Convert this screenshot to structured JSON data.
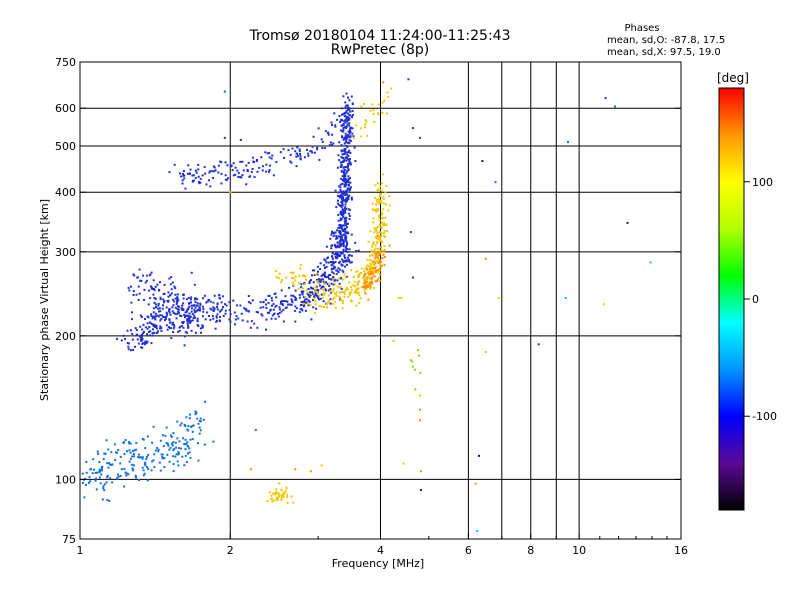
{
  "chart_data": {
    "type": "scatter",
    "title": "Tromsø 20180104 11:24:00-11:25:43",
    "subtitle": "RwPretec (8p)",
    "xlabel": "Frequency [MHz]",
    "ylabel": "Stationary phase Virtual Height [km]",
    "x_scale": "log",
    "y_scale": "log",
    "xlim": [
      1,
      16
    ],
    "ylim": [
      75,
      750
    ],
    "x_ticks": [
      1,
      2,
      4,
      6,
      8,
      10,
      16
    ],
    "x_grid": [
      2,
      4,
      6,
      7,
      8,
      9,
      10
    ],
    "y_ticks": [
      75,
      100,
      200,
      300,
      400,
      500,
      600,
      750
    ],
    "y_grid": [
      100,
      200,
      300,
      400,
      500,
      600
    ],
    "grid": true,
    "stats": {
      "heading": "Phases",
      "line_o": "mean, sd,O: -87.8, 17.5",
      "line_x": "mean, sd,X:  97.5, 19.0"
    },
    "colorbar": {
      "label": "[deg]",
      "range": [
        -180,
        180
      ],
      "ticks": [
        100,
        0,
        -100
      ],
      "colors": [
        "#000000",
        "#5a0a96",
        "#0000ff",
        "#0096ff",
        "#00ffff",
        "#00ff00",
        "#b4ff00",
        "#ffff00",
        "#ff9600",
        "#ff0000"
      ]
    },
    "series": [
      {
        "phase": -95,
        "color": "#2030d0",
        "segments": [
          {
            "f": [
              1.28,
              1.34,
              1.45,
              1.55,
              1.65,
              1.8,
              2.0,
              2.3,
              2.6,
              2.9,
              3.1,
              3.3,
              3.4
            ],
            "h": [
              190,
              205,
              215,
              220,
              223,
              225,
              226,
              228,
              232,
              240,
              255,
              280,
              310
            ],
            "n": 520,
            "sf": 0.035,
            "sh": 0.04
          },
          {
            "f": [
              1.3,
              1.45,
              1.6,
              1.75
            ],
            "h": [
              250,
              240,
              230,
              222
            ],
            "n": 160,
            "sf": 0.04,
            "sh": 0.06
          },
          {
            "f": [
              1.55,
              1.7,
              1.9,
              2.1,
              2.4,
              2.7,
              2.95,
              3.15,
              3.3
            ],
            "h": [
              430,
              435,
              440,
              445,
              460,
              475,
              490,
              520,
              570
            ],
            "n": 170,
            "sf": 0.025,
            "sh": 0.03
          },
          {
            "f": [
              3.35,
              3.37,
              3.4,
              3.42,
              3.44
            ],
            "h": [
              300,
              360,
              420,
              500,
              620
            ],
            "n": 420,
            "sf": 0.015,
            "sh": 0.05
          }
        ]
      },
      {
        "phase": -110,
        "color": "#1a28c8",
        "segments": [
          {
            "f": [
              2.8,
              3.0,
              3.15,
              3.25,
              3.32
            ],
            "h": [
              240,
              255,
              275,
              300,
              340
            ],
            "n": 90,
            "sf": 0.02,
            "sh": 0.03
          }
        ]
      },
      {
        "phase": -78,
        "color": "#1070e0",
        "segments": [
          {
            "f": [
              1.0,
              1.1,
              1.2,
              1.35,
              1.5,
              1.65
            ],
            "h": [
              100,
              104,
              108,
              112,
              116,
              120
            ],
            "n": 230,
            "sf": 0.05,
            "sh": 0.06
          },
          {
            "f": [
              1.6,
              1.7,
              1.75
            ],
            "h": [
              130,
              133,
              135
            ],
            "n": 25,
            "sf": 0.02,
            "sh": 0.03
          }
        ]
      },
      {
        "phase": 110,
        "color": "#f0c800",
        "segments": [
          {
            "f": [
              2.9,
              3.2,
              3.5,
              3.7,
              3.85,
              3.95,
              4.0,
              4.02
            ],
            "h": [
              245,
              248,
              252,
              260,
              275,
              300,
              350,
              420
            ],
            "n": 320,
            "sf": 0.02,
            "sh": 0.04
          },
          {
            "f": [
              2.45,
              2.5,
              2.55
            ],
            "h": [
              92,
              93,
              94
            ],
            "n": 45,
            "sf": 0.03,
            "sh": 0.02
          },
          {
            "f": [
              2.5,
              2.65,
              2.8
            ],
            "h": [
              270,
              265,
              258
            ],
            "n": 30,
            "sf": 0.03,
            "sh": 0.03
          },
          {
            "f": [
              3.6,
              3.75,
              3.9,
              4.05
            ],
            "h": [
              540,
              570,
              600,
              640
            ],
            "n": 25,
            "sf": 0.02,
            "sh": 0.03
          }
        ]
      },
      {
        "phase": 135,
        "color": "#ff8c00",
        "segments": [
          {
            "f": [
              3.7,
              3.85,
              3.95,
              4.05
            ],
            "h": [
              255,
              265,
              285,
              320
            ],
            "n": 70,
            "sf": 0.015,
            "sh": 0.03
          }
        ]
      },
      {
        "phase": 50,
        "color": "#80e000",
        "segments": [
          {
            "f": [
              4.6,
              4.75,
              4.85
            ],
            "h": [
              190,
              175,
              165
            ],
            "n": 8,
            "sf": 0.02,
            "sh": 0.05
          }
        ]
      }
    ],
    "scatter_points": [
      {
        "f": 1.95,
        "h": 650,
        "c": "#1060e0"
      },
      {
        "f": 1.95,
        "h": 520,
        "c": "#2030d0"
      },
      {
        "f": 2.1,
        "h": 515,
        "c": "#1a28c8"
      },
      {
        "f": 4.05,
        "h": 680,
        "c": "#ff8c00"
      },
      {
        "f": 4.2,
        "h": 660,
        "c": "#f0c800"
      },
      {
        "f": 4.55,
        "h": 690,
        "c": "#2030d0"
      },
      {
        "f": 4.65,
        "h": 545,
        "c": "#1a28c8"
      },
      {
        "f": 4.8,
        "h": 520,
        "c": "#2030d0"
      },
      {
        "f": 4.6,
        "h": 330,
        "c": "#2030d0"
      },
      {
        "f": 4.65,
        "h": 265,
        "c": "#2030d0"
      },
      {
        "f": 4.35,
        "h": 240,
        "c": "#f0c800"
      },
      {
        "f": 4.8,
        "h": 150,
        "c": "#f0c800"
      },
      {
        "f": 4.8,
        "h": 140,
        "c": "#ff8c00"
      },
      {
        "f": 4.8,
        "h": 133,
        "c": "#ff8c00"
      },
      {
        "f": 4.82,
        "h": 104,
        "c": "#ff8c00"
      },
      {
        "f": 4.82,
        "h": 95,
        "c": "#1a1a60"
      },
      {
        "f": 4.45,
        "h": 108,
        "c": "#f0c800"
      },
      {
        "f": 6.4,
        "h": 465,
        "c": "#1a1a60"
      },
      {
        "f": 6.5,
        "h": 290,
        "c": "#ff8c00"
      },
      {
        "f": 6.5,
        "h": 185,
        "c": "#f0c800"
      },
      {
        "f": 6.3,
        "h": 112,
        "c": "#1a1a60"
      },
      {
        "f": 6.2,
        "h": 98,
        "c": "#ff8c00"
      },
      {
        "f": 6.25,
        "h": 78,
        "c": "#00c8c8"
      },
      {
        "f": 6.8,
        "h": 420,
        "c": "#1070e0"
      },
      {
        "f": 6.9,
        "h": 240,
        "c": "#f0c800"
      },
      {
        "f": 8.3,
        "h": 192,
        "c": "#2030d0"
      },
      {
        "f": 9.5,
        "h": 510,
        "c": "#1070e0"
      },
      {
        "f": 9.4,
        "h": 240,
        "c": "#00c8c8"
      },
      {
        "f": 11.2,
        "h": 233,
        "c": "#f0c800"
      },
      {
        "f": 11.3,
        "h": 630,
        "c": "#2030d0"
      },
      {
        "f": 11.8,
        "h": 605,
        "c": "#1070e0"
      },
      {
        "f": 12.5,
        "h": 345,
        "c": "#1a1a60"
      },
      {
        "f": 13.9,
        "h": 285,
        "c": "#00c8c8"
      },
      {
        "f": 2.0,
        "h": 400,
        "c": "#f0c800"
      },
      {
        "f": 2.2,
        "h": 105,
        "c": "#ff8c00"
      },
      {
        "f": 2.7,
        "h": 105,
        "c": "#ff8c00"
      },
      {
        "f": 2.9,
        "h": 104,
        "c": "#ff8c00"
      },
      {
        "f": 3.05,
        "h": 107,
        "c": "#f0c800"
      },
      {
        "f": 1.85,
        "h": 120,
        "c": "#1070e0"
      },
      {
        "f": 2.25,
        "h": 127,
        "c": "#1070e0"
      },
      {
        "f": 4.25,
        "h": 195,
        "c": "#f0c800"
      },
      {
        "f": 4.4,
        "h": 240,
        "c": "#f0c800"
      }
    ]
  }
}
